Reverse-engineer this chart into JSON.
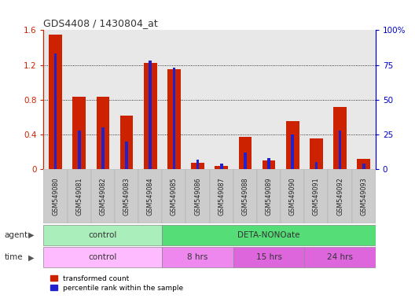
{
  "title": "GDS4408 / 1430804_at",
  "samples": [
    "GSM549080",
    "GSM549081",
    "GSM549082",
    "GSM549083",
    "GSM549084",
    "GSM549085",
    "GSM549086",
    "GSM549087",
    "GSM549088",
    "GSM549089",
    "GSM549090",
    "GSM549091",
    "GSM549092",
    "GSM549093"
  ],
  "red_values": [
    1.55,
    0.83,
    0.83,
    0.62,
    1.22,
    1.15,
    0.07,
    0.04,
    0.37,
    0.1,
    0.55,
    0.35,
    0.72,
    0.12
  ],
  "blue_pct": [
    83,
    28,
    30,
    20,
    78,
    73,
    7,
    4,
    12,
    8,
    25,
    5,
    28,
    4
  ],
  "ylim_left": [
    0,
    1.6
  ],
  "ylim_right": [
    0,
    100
  ],
  "yticks_left": [
    0,
    0.4,
    0.8,
    1.2,
    1.6
  ],
  "yticks_right": [
    0,
    25,
    50,
    75,
    100
  ],
  "ytick_labels_right": [
    "0",
    "25",
    "50",
    "75",
    "100%"
  ],
  "bar_width": 0.55,
  "red_color": "#cc2200",
  "blue_color": "#2222cc",
  "agent_row": [
    {
      "label": "control",
      "start": 0,
      "end": 5,
      "color": "#aaeebb"
    },
    {
      "label": "DETA-NONOate",
      "start": 5,
      "end": 14,
      "color": "#55dd77"
    }
  ],
  "time_row": [
    {
      "label": "control",
      "start": 0,
      "end": 5,
      "color": "#ffbbff"
    },
    {
      "label": "8 hrs",
      "start": 5,
      "end": 8,
      "color": "#ee88ee"
    },
    {
      "label": "15 hrs",
      "start": 8,
      "end": 11,
      "color": "#dd66dd"
    },
    {
      "label": "24 hrs",
      "start": 11,
      "end": 14,
      "color": "#dd66dd"
    }
  ],
  "bg_color": "#ffffff",
  "left_axis_color": "#cc2200",
  "right_axis_color": "#0000cc",
  "tick_label_bg": "#cccccc"
}
